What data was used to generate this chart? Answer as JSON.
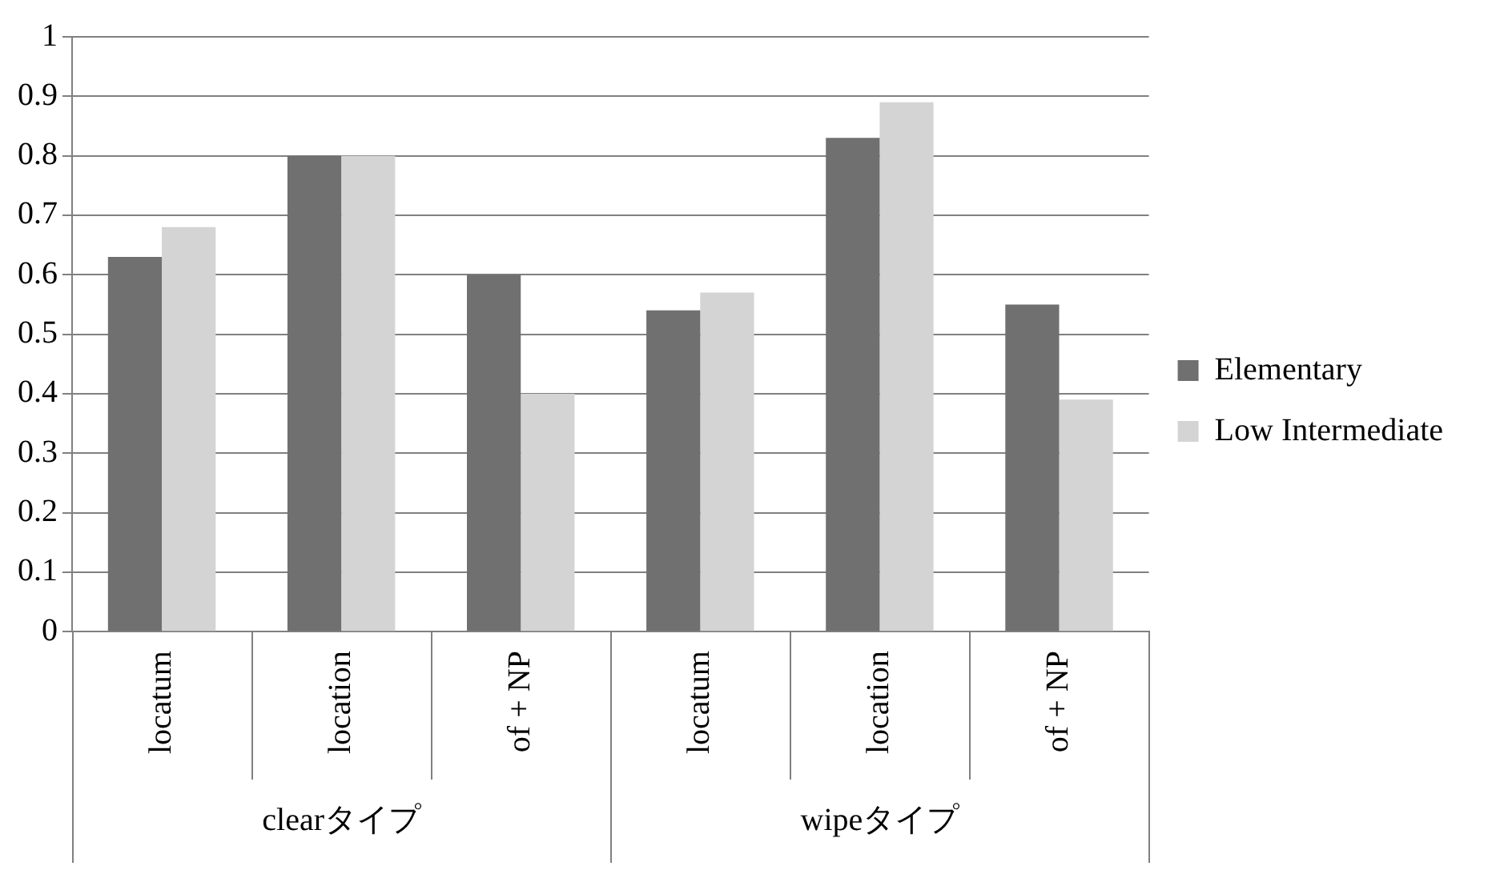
{
  "chart_data": {
    "type": "bar",
    "categories": [
      "locatum",
      "location",
      "of + NP",
      "locatum",
      "location",
      "of + NP"
    ],
    "annotations": [
      "clearタイプ",
      "wipeタイプ"
    ],
    "series": [
      {
        "name": "Elementary",
        "color": "#707070",
        "values": [
          0.63,
          0.8,
          0.6,
          0.54,
          0.83,
          0.55
        ]
      },
      {
        "name": "Low Intermediate",
        "color": "#d4d4d4",
        "values": [
          0.68,
          0.8,
          0.4,
          0.57,
          0.89,
          0.39
        ]
      }
    ],
    "ylim": [
      0,
      1
    ],
    "yticks": [
      0,
      0.1,
      0.2,
      0.3,
      0.4,
      0.5,
      0.6,
      0.7,
      0.8,
      0.9,
      1
    ],
    "grid": "y",
    "legend": "right"
  }
}
